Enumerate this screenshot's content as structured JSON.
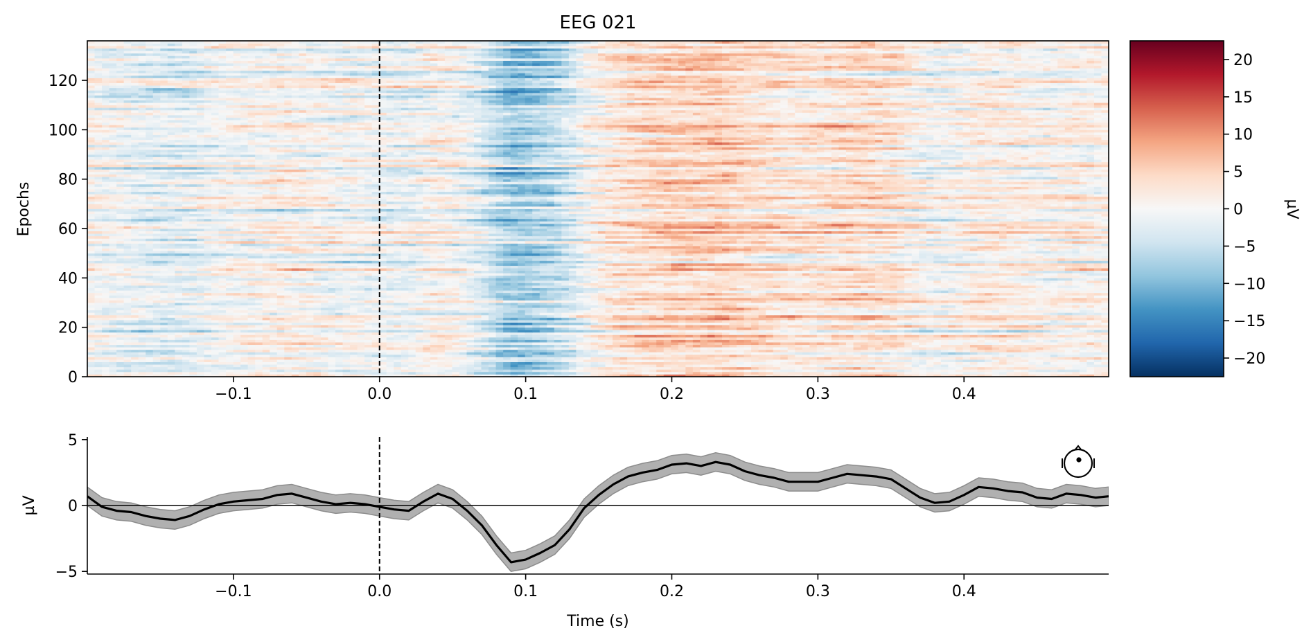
{
  "chart_data": [
    {
      "type": "heatmap",
      "title": "EEG 021",
      "xlabel": "",
      "ylabel": "Epochs",
      "xlim": [
        -0.2,
        0.499
      ],
      "ylim": [
        0,
        136
      ],
      "n_epochs": 136,
      "n_times": 140,
      "clim": [
        -22.5,
        22.5
      ],
      "xticks": [
        -0.1,
        0.0,
        0.1,
        0.2,
        0.3,
        0.4
      ],
      "xtick_labels": [
        "−0.1",
        "0.0",
        "0.1",
        "0.2",
        "0.3",
        "0.4"
      ],
      "yticks": [
        0,
        20,
        40,
        60,
        80,
        100,
        120
      ],
      "ytick_labels": [
        "0",
        "20",
        "40",
        "60",
        "80",
        "100",
        "120"
      ],
      "stimulus_onset": 0.0,
      "colorbar": {
        "label": "µV",
        "ticks": [
          -20,
          -15,
          -10,
          -5,
          0,
          5,
          10,
          15,
          20
        ],
        "tick_labels": [
          "−20",
          "−15",
          "−10",
          "−5",
          "0",
          "5",
          "10",
          "15",
          "20"
        ],
        "colormap": "RdBu_r",
        "colors": [
          "#053061",
          "#2166ac",
          "#4393c3",
          "#92c5de",
          "#d1e5f0",
          "#f7f7f7",
          "#fddbc7",
          "#f4a582",
          "#d6604d",
          "#b2182b",
          "#67001f"
        ]
      }
    },
    {
      "type": "line",
      "title": "",
      "xlabel": "Time (s)",
      "ylabel": "µV",
      "xlim": [
        -0.2,
        0.499
      ],
      "ylim": [
        -5.2,
        5.2
      ],
      "xticks": [
        -0.1,
        0.0,
        0.1,
        0.2,
        0.3,
        0.4
      ],
      "xtick_labels": [
        "−0.1",
        "0.0",
        "0.1",
        "0.2",
        "0.3",
        "0.4"
      ],
      "yticks": [
        -5,
        0,
        5
      ],
      "ytick_labels": [
        "−5",
        "0",
        "5"
      ],
      "series": [
        {
          "name": "mean",
          "color": "#000000",
          "x": [
            -0.2,
            -0.19,
            -0.18,
            -0.17,
            -0.16,
            -0.15,
            -0.14,
            -0.13,
            -0.12,
            -0.11,
            -0.1,
            -0.09,
            -0.08,
            -0.07,
            -0.06,
            -0.05,
            -0.04,
            -0.03,
            -0.02,
            -0.01,
            0.0,
            0.01,
            0.02,
            0.03,
            0.04,
            0.05,
            0.06,
            0.07,
            0.08,
            0.09,
            0.1,
            0.11,
            0.12,
            0.13,
            0.14,
            0.15,
            0.16,
            0.17,
            0.18,
            0.19,
            0.2,
            0.21,
            0.22,
            0.23,
            0.24,
            0.25,
            0.26,
            0.27,
            0.28,
            0.29,
            0.3,
            0.31,
            0.32,
            0.33,
            0.34,
            0.35,
            0.36,
            0.37,
            0.38,
            0.39,
            0.4,
            0.41,
            0.42,
            0.43,
            0.44,
            0.45,
            0.46,
            0.47,
            0.48,
            0.49,
            0.499
          ],
          "values": [
            0.7,
            -0.1,
            -0.4,
            -0.5,
            -0.8,
            -1.0,
            -1.1,
            -0.8,
            -0.3,
            0.1,
            0.3,
            0.4,
            0.5,
            0.8,
            0.9,
            0.6,
            0.3,
            0.1,
            0.2,
            0.1,
            -0.1,
            -0.3,
            -0.4,
            0.3,
            0.9,
            0.5,
            -0.4,
            -1.5,
            -3.0,
            -4.3,
            -4.1,
            -3.6,
            -3.0,
            -1.8,
            -0.2,
            0.8,
            1.6,
            2.2,
            2.5,
            2.7,
            3.1,
            3.2,
            3.0,
            3.3,
            3.1,
            2.6,
            2.3,
            2.1,
            1.8,
            1.8,
            1.8,
            2.1,
            2.4,
            2.3,
            2.2,
            2.0,
            1.3,
            0.6,
            0.2,
            0.3,
            0.8,
            1.4,
            1.3,
            1.1,
            1.0,
            0.6,
            0.5,
            0.9,
            0.8,
            0.6,
            0.7
          ]
        }
      ],
      "band": {
        "name": "confidence interval",
        "color": "#b0b0b0",
        "half_width": 0.7
      },
      "zero_line": 0,
      "stimulus_onset": 0.0,
      "inset": "head-sensor-icon"
    }
  ]
}
